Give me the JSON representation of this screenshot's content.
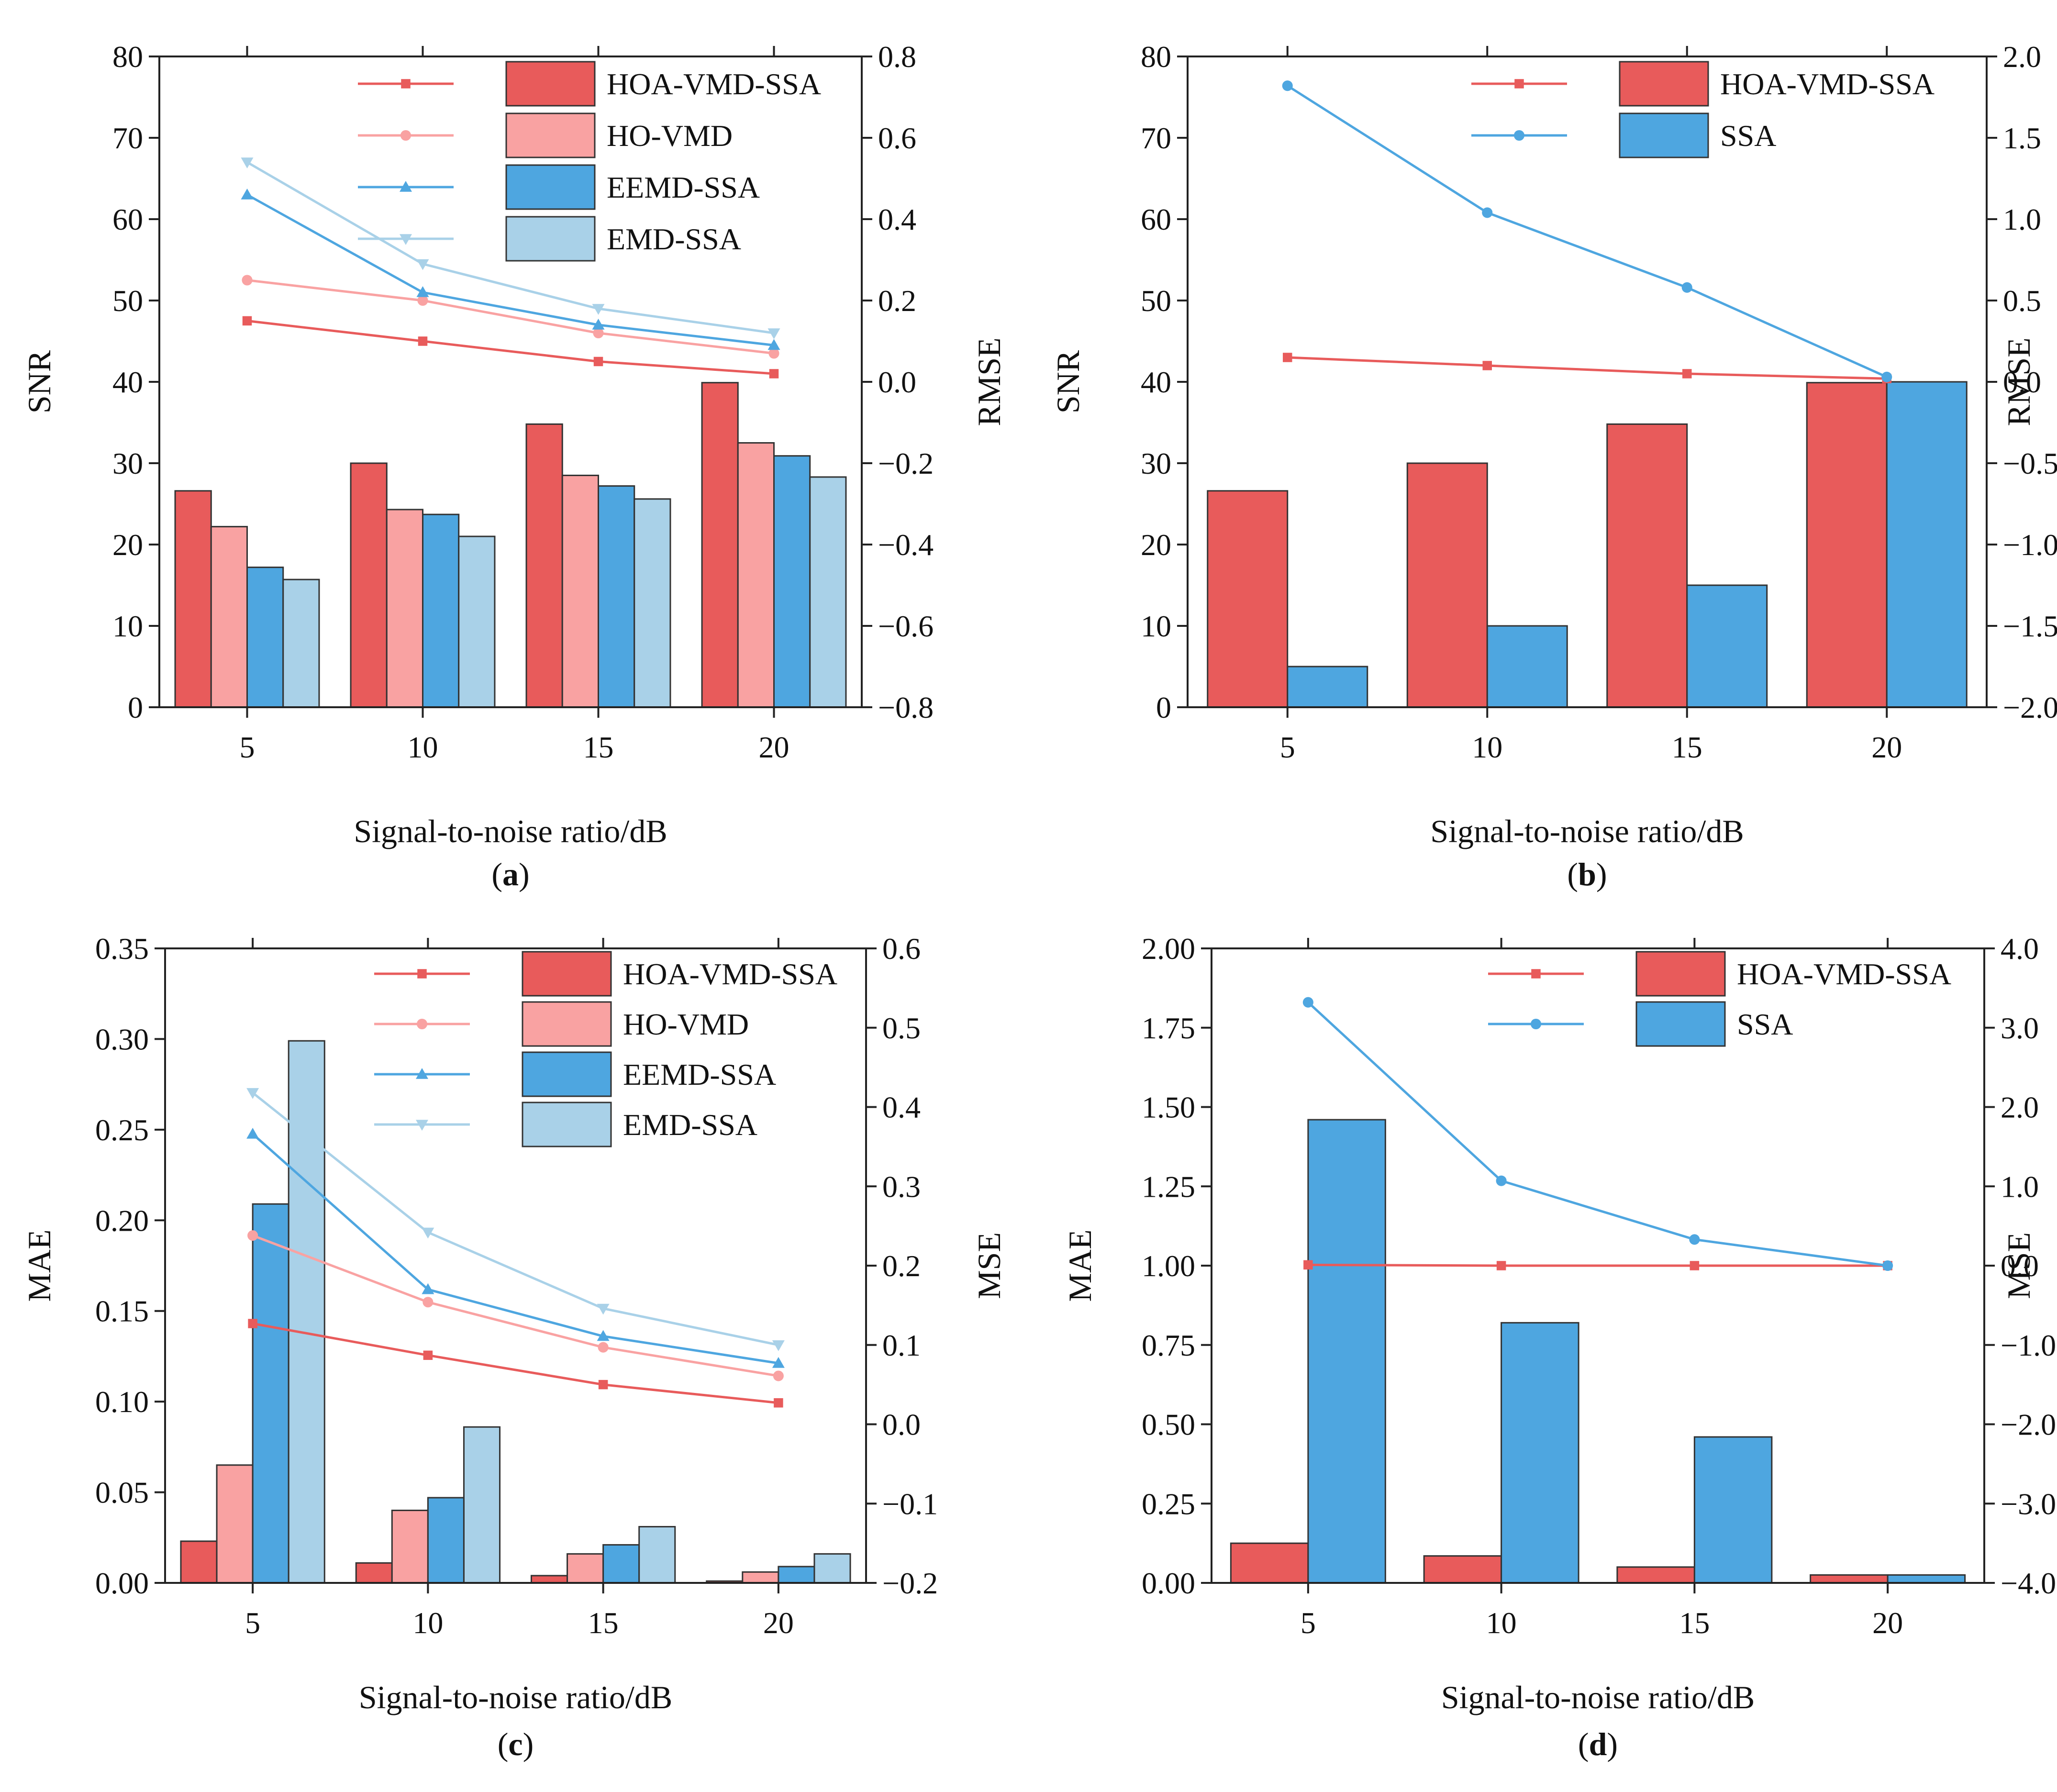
{
  "colors": {
    "red": "#e85b5b",
    "pink": "#f9a2a2",
    "blue": "#4ea6e0",
    "lightblue": "#a9d1e8",
    "bar_edge": "#333333"
  },
  "chart_data": [
    {
      "id": "a",
      "caption": "(a)",
      "caption_letter": "a",
      "type": "bar+line",
      "xlabel": "Signal-to-noise ratio/dB",
      "ylabel_left": "SNR",
      "ylabel_right": "RMSE",
      "categories": [
        "5",
        "10",
        "15",
        "20"
      ],
      "ylim_left": [
        0,
        80
      ],
      "ylim_right": [
        -0.8,
        0.8
      ],
      "left_ticks": [
        "0",
        "10",
        "20",
        "30",
        "40",
        "50",
        "60",
        "70",
        "80"
      ],
      "right_ticks": [
        "−0.8",
        "−0.6",
        "−0.4",
        "−0.2",
        "0.0",
        "0.2",
        "0.4",
        "0.6",
        "0.8"
      ],
      "legend": [
        "HOA-VMD-SSA",
        "HO-VMD",
        "EEMD-SSA",
        "EMD-SSA"
      ],
      "bar_series": [
        {
          "name": "HOA-VMD-SSA",
          "color": "red",
          "values": [
            26.6,
            30.0,
            34.8,
            39.9
          ]
        },
        {
          "name": "HO-VMD",
          "color": "pink",
          "values": [
            22.2,
            24.3,
            28.5,
            32.5
          ]
        },
        {
          "name": "EEMD-SSA",
          "color": "blue",
          "values": [
            17.2,
            23.7,
            27.2,
            30.9
          ]
        },
        {
          "name": "EMD-SSA",
          "color": "lightblue",
          "values": [
            15.7,
            21.0,
            25.6,
            28.3
          ]
        }
      ],
      "line_series": [
        {
          "name": "HOA-VMD-SSA",
          "color": "red",
          "marker": "square",
          "values": [
            0.15,
            0.1,
            0.05,
            0.02
          ]
        },
        {
          "name": "HO-VMD",
          "color": "pink",
          "marker": "circle",
          "values": [
            0.25,
            0.2,
            0.12,
            0.07
          ]
        },
        {
          "name": "EEMD-SSA",
          "color": "blue",
          "marker": "triangle-up",
          "values": [
            0.46,
            0.22,
            0.14,
            0.09
          ]
        },
        {
          "name": "EMD-SSA",
          "color": "lightblue",
          "marker": "triangle-down",
          "values": [
            0.54,
            0.29,
            0.18,
            0.12
          ]
        }
      ]
    },
    {
      "id": "b",
      "caption": "(b)",
      "caption_letter": "b",
      "type": "bar+line",
      "xlabel": "Signal-to-noise ratio/dB",
      "ylabel_left": "SNR",
      "ylabel_right": "RMSE",
      "categories": [
        "5",
        "10",
        "15",
        "20"
      ],
      "ylim_left": [
        0,
        80
      ],
      "ylim_right": [
        -2.0,
        2.0
      ],
      "left_ticks": [
        "0",
        "10",
        "20",
        "30",
        "40",
        "50",
        "60",
        "70",
        "80"
      ],
      "right_ticks": [
        "−2.0",
        "−1.5",
        "−1.0",
        "−0.5",
        "0.0",
        "0.5",
        "1.0",
        "1.5",
        "2.0"
      ],
      "legend": [
        "HOA-VMD-SSA",
        "SSA"
      ],
      "bar_series": [
        {
          "name": "HOA-VMD-SSA",
          "color": "red",
          "values": [
            26.6,
            30.0,
            34.8,
            39.9
          ]
        },
        {
          "name": "SSA",
          "color": "blue",
          "values": [
            5.0,
            10.0,
            15.0,
            40.0
          ]
        }
      ],
      "line_series": [
        {
          "name": "HOA-VMD-SSA",
          "color": "red",
          "marker": "square",
          "values": [
            0.15,
            0.1,
            0.05,
            0.02
          ]
        },
        {
          "name": "SSA",
          "color": "blue",
          "marker": "circle",
          "values": [
            1.82,
            1.04,
            0.58,
            0.03
          ]
        }
      ]
    },
    {
      "id": "c",
      "caption": "(c)",
      "caption_letter": "c",
      "type": "bar+line",
      "xlabel": "Signal-to-noise ratio/dB",
      "ylabel_left": "MAE",
      "ylabel_right": "MSE",
      "categories": [
        "5",
        "10",
        "15",
        "20"
      ],
      "ylim_left": [
        0,
        0.35
      ],
      "ylim_right": [
        -0.2,
        0.6
      ],
      "left_ticks": [
        "0.00",
        "0.05",
        "0.10",
        "0.15",
        "0.20",
        "0.25",
        "0.30",
        "0.35"
      ],
      "right_ticks": [
        "−0.2",
        "−0.1",
        "0.0",
        "0.1",
        "0.2",
        "0.3",
        "0.4",
        "0.5",
        "0.6"
      ],
      "legend": [
        "HOA-VMD-SSA",
        "HO-VMD",
        "EEMD-SSA",
        "EMD-SSA"
      ],
      "bar_series": [
        {
          "name": "HOA-VMD-SSA",
          "color": "red",
          "values": [
            0.023,
            0.011,
            0.004,
            0.001
          ]
        },
        {
          "name": "HO-VMD",
          "color": "pink",
          "values": [
            0.065,
            0.04,
            0.016,
            0.006
          ]
        },
        {
          "name": "EEMD-SSA",
          "color": "blue",
          "values": [
            0.209,
            0.047,
            0.021,
            0.009
          ]
        },
        {
          "name": "EMD-SSA",
          "color": "lightblue",
          "values": [
            0.299,
            0.086,
            0.031,
            0.016
          ]
        }
      ],
      "line_series": [
        {
          "name": "HOA-VMD-SSA",
          "color": "red",
          "marker": "square",
          "values": [
            0.127,
            0.087,
            0.05,
            0.027
          ]
        },
        {
          "name": "HO-VMD",
          "color": "pink",
          "marker": "circle",
          "values": [
            0.238,
            0.154,
            0.097,
            0.061
          ]
        },
        {
          "name": "EEMD-SSA",
          "color": "blue",
          "marker": "triangle-up",
          "values": [
            0.366,
            0.17,
            0.111,
            0.077
          ]
        },
        {
          "name": "EMD-SSA",
          "color": "lightblue",
          "marker": "triangle-down",
          "values": [
            0.418,
            0.242,
            0.146,
            0.1
          ]
        }
      ]
    },
    {
      "id": "d",
      "caption": "(d)",
      "caption_letter": "d",
      "type": "bar+line",
      "xlabel": "Signal-to-noise ratio/dB",
      "ylabel_left": "MAE",
      "ylabel_right": "MSE",
      "categories": [
        "5",
        "10",
        "15",
        "20"
      ],
      "ylim_left": [
        0,
        2.0
      ],
      "ylim_right": [
        -4.0,
        4.0
      ],
      "left_ticks": [
        "0.00",
        "0.25",
        "0.50",
        "0.75",
        "1.00",
        "1.25",
        "1.50",
        "1.75",
        "2.00"
      ],
      "right_ticks": [
        "−4.0",
        "−3.0",
        "−2.0",
        "−1.0",
        "0.0",
        "1.0",
        "2.0",
        "3.0",
        "4.0"
      ],
      "legend": [
        "HOA-VMD-SSA",
        "SSA"
      ],
      "bar_series": [
        {
          "name": "HOA-VMD-SSA",
          "color": "red",
          "values": [
            0.125,
            0.085,
            0.05,
            0.025
          ]
        },
        {
          "name": "SSA",
          "color": "blue",
          "values": [
            1.46,
            0.82,
            0.46,
            0.025
          ]
        }
      ],
      "line_series": [
        {
          "name": "HOA-VMD-SSA",
          "color": "red",
          "marker": "square",
          "values": [
            0.01,
            0.0,
            0.0,
            0.0
          ]
        },
        {
          "name": "SSA",
          "color": "blue",
          "marker": "circle",
          "values": [
            3.32,
            1.07,
            0.33,
            0.0
          ]
        }
      ]
    }
  ]
}
